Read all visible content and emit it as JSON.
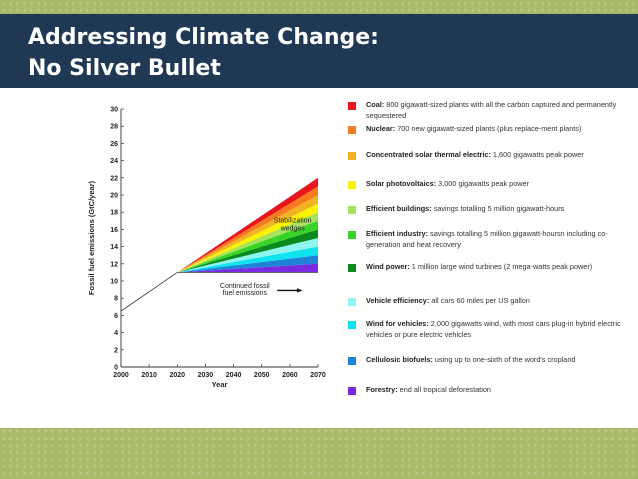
{
  "slide": {
    "title_line1": "Addressing Climate Change:",
    "title_line2": "No Silver Bullet"
  },
  "chart_data": {
    "type": "area",
    "title": "",
    "xlabel": "Year",
    "ylabel": "Fossil fuel emissions (GtC/year)",
    "xlim": [
      2000,
      2070
    ],
    "ylim": [
      0,
      30
    ],
    "x_ticks": [
      2000,
      2010,
      2020,
      2030,
      2040,
      2050,
      2060,
      2070
    ],
    "y_ticks": [
      0,
      2,
      4,
      6,
      8,
      10,
      12,
      14,
      16,
      18,
      20,
      22,
      24,
      26,
      28,
      30
    ],
    "baseline": {
      "x": [
        2000,
        2020
      ],
      "y": [
        6.5,
        11
      ]
    },
    "wedge_start": {
      "x": 2020,
      "y": 11
    },
    "wedge_end_x": 2070,
    "flat_value": 11,
    "wedge_tops_at_2070": [
      12,
      13,
      14,
      15,
      16,
      17,
      18,
      19,
      20,
      21,
      22
    ],
    "annotations": {
      "wedges_line1": "Stabilization",
      "wedges_line2": "wedges",
      "continued_line1": "Continued fossil",
      "continued_line2": "fuel emissions"
    }
  },
  "legend": [
    {
      "color": "#e8161b",
      "name": "Coal:",
      "text": " 800 gigawatt-sized plants with all the carbon captured and permanently sequestered"
    },
    {
      "color": "#f47b20",
      "name": "Nuclear:",
      "text": " 700 new gigawatt-sized plants (plus replace-ment plants)"
    },
    {
      "color": "#f0b323",
      "name": "Concentrated solar thermal electric:",
      "text": " 1,600 gigawatts peak power"
    },
    {
      "color": "#fff200",
      "name": "Solar photovoltaics:",
      "text": " 3,000 gigawatts peak power"
    },
    {
      "color": "#a6e35b",
      "name": "Efficient buildings:",
      "text": " savings totalling 5 million gigawatt-hours"
    },
    {
      "color": "#39d428",
      "name": "Efficient industry:",
      "text": " savings totalling 5 million gigawatt-hoursn including co-generation and heat recovery"
    },
    {
      "color": "#0b8a1d",
      "name": "Wind power:",
      "text": " 1 million large wind turbines (2 mega-watts peak power)"
    },
    {
      "color": "#8ff5f0",
      "name": "Vehicle efficiency:",
      "text": " all cars 60 miles per US gallon"
    },
    {
      "color": "#10e3f0",
      "name": "Wind for vehicles:",
      "text": " 2,000 gigawatts wind, with most cars plug-in hybrid electric vehicles or pure electric vehicles"
    },
    {
      "color": "#1f82d6",
      "name": "Cellulosic biofuels:",
      "text": " using up to one-sixth of the word's cropland"
    },
    {
      "color": "#7a2ae0",
      "name": "Forestry:",
      "text": " end all tropical deforestation"
    }
  ]
}
